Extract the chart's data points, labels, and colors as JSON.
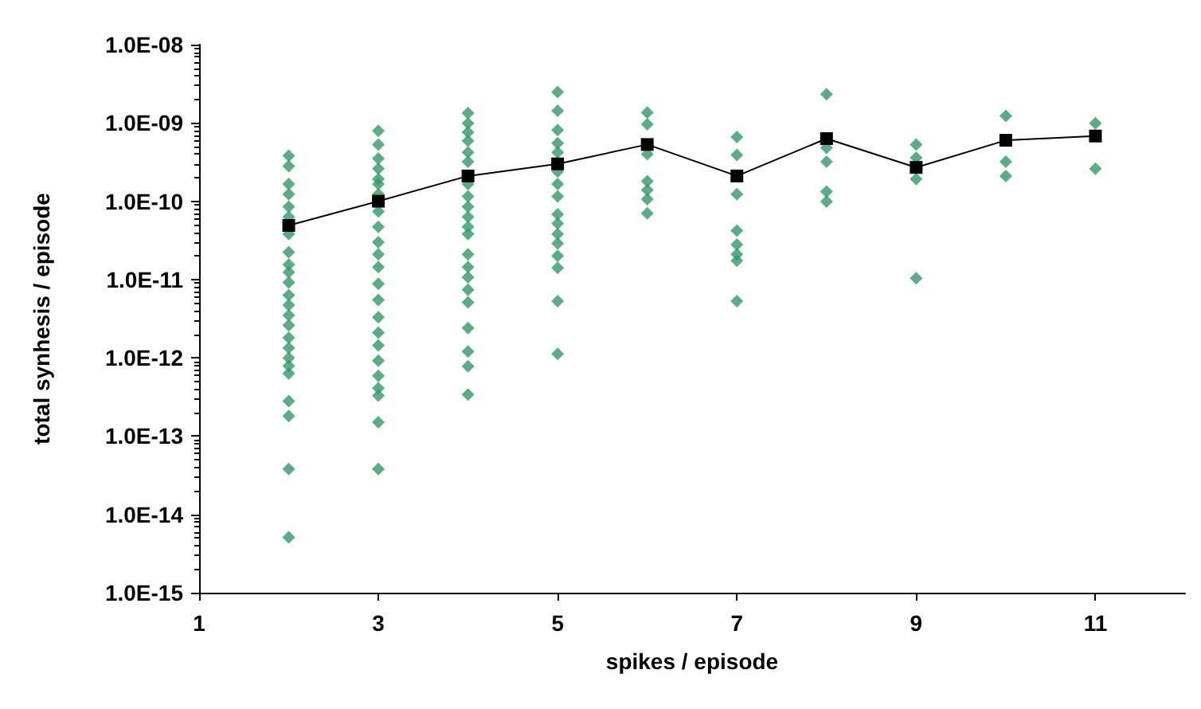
{
  "chart_data": {
    "type": "scatter",
    "xlabel": "spikes / episode",
    "ylabel": "total synhesis / episode",
    "log": "y",
    "grid": false,
    "xlim": [
      1,
      12
    ],
    "xticks": [
      1,
      3,
      5,
      7,
      9,
      11
    ],
    "ylim": [
      1e-15,
      1e-08
    ],
    "yticks": [
      {
        "value": 1e-15,
        "label": "1.0E-15"
      },
      {
        "value": 1e-14,
        "label": "1.0E-14"
      },
      {
        "value": 1e-13,
        "label": "1.0E-13"
      },
      {
        "value": 1e-12,
        "label": "1.0E-12"
      },
      {
        "value": 1e-11,
        "label": "1.0E-11"
      },
      {
        "value": 1e-10,
        "label": "1.0E-10"
      },
      {
        "value": 1e-09,
        "label": "1.0E-09"
      },
      {
        "value": 1e-08,
        "label": "1.0E-08"
      }
    ],
    "series": [
      {
        "marker": "diamond",
        "color": "#339966",
        "x": [
          2,
          2,
          2,
          2,
          2,
          2,
          2,
          2,
          2,
          2,
          2,
          2,
          2,
          2,
          2,
          2,
          2,
          2,
          2,
          2,
          2,
          2,
          2,
          2,
          3,
          3,
          3,
          3,
          3,
          3,
          3,
          3,
          3,
          3,
          3,
          3,
          3,
          3,
          3,
          3,
          3,
          3,
          3,
          3,
          3,
          3,
          3,
          4,
          4,
          4,
          4,
          4,
          4,
          4,
          4,
          4,
          4,
          4,
          4,
          4,
          4,
          4,
          4,
          4,
          4,
          4,
          4,
          4,
          5,
          5,
          5,
          5,
          5,
          5,
          5,
          5,
          5,
          5,
          5,
          5,
          5,
          5,
          5,
          5,
          6,
          6,
          6,
          6,
          6,
          6,
          6,
          7,
          7,
          7,
          7,
          7,
          7,
          7,
          7,
          8,
          8,
          8,
          8,
          8,
          9,
          9,
          9,
          9,
          10,
          10,
          10,
          11,
          11
        ],
        "values": [
          3.8e-10,
          2.8e-10,
          1.66e-10,
          1.23e-10,
          8.5e-11,
          6.3e-11,
          3.8e-11,
          2.24e-11,
          1.55e-11,
          1.24e-11,
          9.2e-12,
          6.3e-12,
          4.7e-12,
          3.5e-12,
          2.6e-12,
          1.8e-12,
          1.34e-12,
          1e-12,
          7.9e-13,
          6.3e-13,
          2.8e-13,
          1.8e-13,
          3.8e-14,
          5.1e-15,
          7.9e-10,
          5.3e-10,
          3.5e-10,
          2.6e-10,
          1.92e-10,
          1.66e-10,
          1.23e-10,
          7.4e-11,
          4.7e-11,
          3e-11,
          2.1e-11,
          1.44e-11,
          8.8e-12,
          5.5e-12,
          3.3e-12,
          2.1e-12,
          1.44e-12,
          9.2e-13,
          5.9e-13,
          4.1e-13,
          3.3e-13,
          1.5e-13,
          3.8e-14,
          1.33e-09,
          9.9e-10,
          7.6e-10,
          5.9e-10,
          4.2e-10,
          3.2e-10,
          1.66e-10,
          1.15e-10,
          8.5e-11,
          6.3e-11,
          4.7e-11,
          3.8e-11,
          2.1e-11,
          1.44e-11,
          1.07e-11,
          7.4e-12,
          5.1e-12,
          2.4e-12,
          1.2e-12,
          7.8e-13,
          3.4e-13,
          2.48e-09,
          1.43e-09,
          8.1e-10,
          5.5e-10,
          4.2e-10,
          2.4e-10,
          1.66e-10,
          1.15e-10,
          6.8e-11,
          5.2e-11,
          3.8e-11,
          2.9e-11,
          2e-11,
          1.41e-11,
          5.3e-12,
          1.12e-12,
          1.36e-09,
          9.6e-10,
          4e-10,
          1.8e-10,
          1.39e-10,
          1.06e-10,
          7e-11,
          6.6e-10,
          3.9e-10,
          1.23e-10,
          4.2e-11,
          2.8e-11,
          2.1e-11,
          1.74e-11,
          5.3e-12,
          2.33e-09,
          4.8e-10,
          3.2e-10,
          1.33e-10,
          9.9e-11,
          5.3e-10,
          3.6e-10,
          1.92e-10,
          1.04e-11,
          1.23e-09,
          3.2e-10,
          2.1e-10,
          9.9e-10,
          2.6e-10
        ]
      },
      {
        "type": "line",
        "marker": "square",
        "line_style": "solid",
        "color": "#000000",
        "x": [
          2,
          3,
          4,
          5,
          6,
          7,
          8,
          9,
          10,
          11
        ],
        "values": [
          4.9e-11,
          1e-10,
          2.1e-10,
          3e-10,
          5.3e-10,
          2.1e-10,
          6.3e-10,
          2.7e-10,
          6e-10,
          6.8e-10
        ]
      }
    ]
  }
}
